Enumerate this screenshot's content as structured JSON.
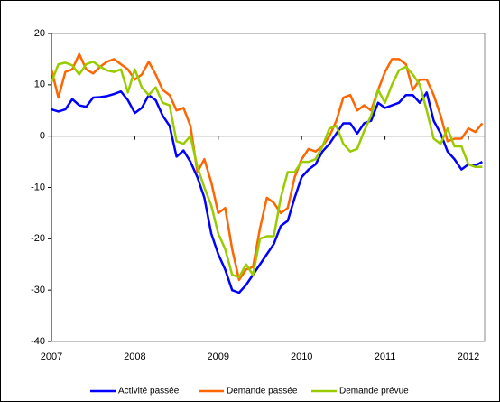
{
  "chart_data": {
    "type": "line",
    "categories": [
      "2007",
      null,
      null,
      null,
      null,
      null,
      null,
      null,
      null,
      null,
      null,
      null,
      "2008",
      null,
      null,
      null,
      null,
      null,
      null,
      null,
      null,
      null,
      null,
      null,
      "2009",
      null,
      null,
      null,
      null,
      null,
      null,
      null,
      null,
      null,
      null,
      null,
      "2010",
      null,
      null,
      null,
      null,
      null,
      null,
      null,
      null,
      null,
      null,
      null,
      "2011",
      null,
      null,
      null,
      null,
      null,
      null,
      null,
      null,
      null,
      null,
      null,
      "2012",
      null,
      null
    ],
    "series": [
      {
        "name": "Activité passée",
        "color": "#0000ff",
        "values": [
          5.2,
          4.8,
          5.2,
          7.2,
          6,
          5.7,
          7.5,
          7.6,
          7.8,
          8.2,
          8.7,
          7,
          4.5,
          5.5,
          8,
          7,
          4,
          2,
          -4,
          -2.8,
          -5,
          -8,
          -12,
          -19,
          -23,
          -26,
          -30,
          -30.5,
          -29,
          -27,
          -25,
          -23,
          -21,
          -17.5,
          -16.5,
          -12,
          -8,
          -6.5,
          -5.5,
          -3,
          -1.5,
          0.5,
          2.5,
          2.5,
          0.5,
          2.5,
          3,
          6.5,
          5.5,
          6,
          6.5,
          8,
          8,
          6.5,
          8.5,
          3,
          0.5,
          -3,
          -4.5,
          -6.5,
          -5.5,
          -5.7,
          -5
        ]
      },
      {
        "name": "Demande passée",
        "color": "#ff6600",
        "values": [
          13,
          7.5,
          12.5,
          13,
          16,
          13,
          12.2,
          13.5,
          14.5,
          15,
          14,
          13,
          11,
          12,
          14.5,
          12,
          9,
          8,
          5,
          5.5,
          2,
          -7,
          -4.5,
          -9,
          -15,
          -14,
          -22,
          -28,
          -26,
          -25.5,
          -18,
          -12,
          -13,
          -15,
          -14,
          -8,
          -4.5,
          -2.5,
          -3,
          -2,
          0,
          3,
          7.5,
          8,
          5,
          6,
          5,
          9,
          12.5,
          15,
          15,
          14,
          9,
          11,
          11,
          8,
          4,
          -1,
          -0.5,
          -0.5,
          1.5,
          0.8,
          2.5
        ]
      },
      {
        "name": "Demande prévue",
        "color": "#99cc00",
        "values": [
          10.5,
          14,
          14.3,
          13.8,
          12,
          14,
          14.5,
          13.5,
          12.8,
          12.5,
          13,
          8.5,
          13,
          9.5,
          8,
          9.5,
          6.5,
          6,
          -1,
          -1.5,
          0,
          -6,
          -10,
          -13.5,
          -19,
          -22,
          -27,
          -27.5,
          -25,
          -27,
          -20,
          -19.5,
          -19.5,
          -12,
          -7,
          -7,
          -5,
          -5,
          -4.5,
          -2,
          1.5,
          2,
          -1.5,
          -3,
          -2.5,
          1,
          4,
          9,
          6.5,
          10,
          12.8,
          13.5,
          12,
          10,
          5,
          -0.5,
          -1.5,
          1.5,
          -2,
          -2,
          -5.5,
          -6,
          -6
        ]
      }
    ],
    "ylim": [
      -40,
      20
    ],
    "yticks": [
      -40,
      -30,
      -20,
      -10,
      0,
      10,
      20
    ],
    "legend": "bottom"
  }
}
